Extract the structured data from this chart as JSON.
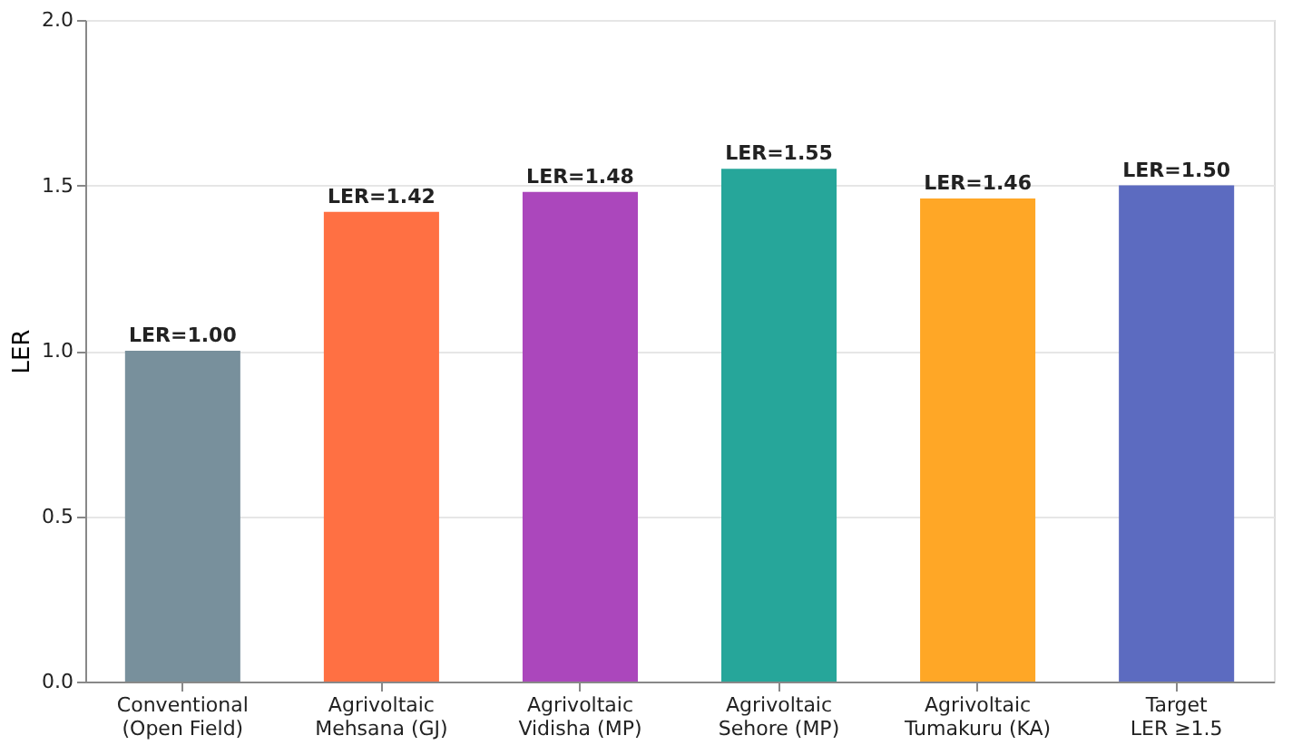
{
  "chart_data": {
    "type": "bar",
    "ylabel": "LER",
    "categories": [
      "Conventional\n(Open Field)",
      "Agrivoltaic\nMehsana (GJ)",
      "Agrivoltaic\nVidisha (MP)",
      "Agrivoltaic\nSehore (MP)",
      "Agrivoltaic\nTumakuru (KA)",
      "Target\nLER ≥1.5"
    ],
    "values": [
      1.0,
      1.42,
      1.48,
      1.55,
      1.46,
      1.5
    ],
    "colors": [
      "#78909c",
      "#ff7043",
      "#ab47bc",
      "#26a69a",
      "#ffa726",
      "#5c6bc0"
    ],
    "value_labels": [
      "LER=1.00",
      "LER=1.42",
      "LER=1.48",
      "LER=1.55",
      "LER=1.46",
      "LER=1.50"
    ],
    "ylim": [
      0,
      2.0
    ],
    "yticks": [
      {
        "value": 0,
        "label": "0.0"
      },
      0.5,
      {
        "value": 1,
        "label": "1.0"
      },
      1.5,
      {
        "value": 2,
        "label": "2.0"
      }
    ],
    "grid": "y"
  }
}
